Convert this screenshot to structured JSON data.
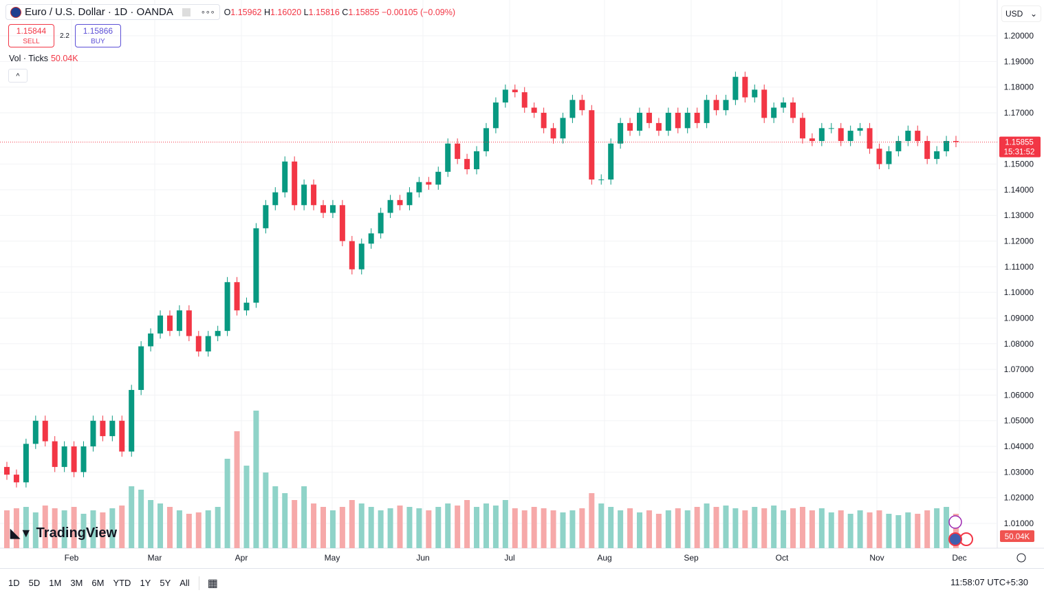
{
  "header": {
    "symbol": "Euro / U.S. Dollar · 1D · OANDA",
    "open_label": "O",
    "open": "1.15962",
    "high_label": "H",
    "high": "1.16020",
    "low_label": "L",
    "low": "1.15816",
    "close_label": "C",
    "close": "1.15855",
    "change": "−0.00105 (−0.09%)",
    "more": "∘∘∘"
  },
  "trade": {
    "sell_price": "1.15844",
    "sell_label": "SELL",
    "spread": "2.2",
    "buy_price": "1.15866",
    "buy_label": "BUY"
  },
  "volume_legend": {
    "label": "Vol · Ticks",
    "value": "50.04K"
  },
  "collapse": "^",
  "currency": "USD",
  "logo": "TradingView",
  "price_label": {
    "price": "1.15855",
    "countdown": "15:31:52"
  },
  "volume_label": "50.04K",
  "timeframes": [
    "1D",
    "5D",
    "1M",
    "3M",
    "6M",
    "YTD",
    "1Y",
    "5Y",
    "All"
  ],
  "clock": "11:58:07 UTC+5:30",
  "colors": {
    "up": "#089981",
    "down": "#f23645",
    "up_vol": "#8fd3c8",
    "down_vol": "#f6a9a9"
  },
  "chart_data": {
    "type": "candlestick",
    "first_open": 1.032,
    "closes": [
      1.029,
      1.026,
      1.041,
      1.05,
      1.042,
      1.032,
      1.04,
      1.03,
      1.04,
      1.05,
      1.044,
      1.05,
      1.038,
      1.062,
      1.079,
      1.084,
      1.091,
      1.085,
      1.093,
      1.083,
      1.077,
      1.083,
      1.085,
      1.104,
      1.093,
      1.096,
      1.125,
      1.134,
      1.139,
      1.151,
      1.134,
      1.142,
      1.134,
      1.131,
      1.134,
      1.12,
      1.109,
      1.119,
      1.123,
      1.131,
      1.136,
      1.134,
      1.139,
      1.143,
      1.142,
      1.147,
      1.158,
      1.152,
      1.148,
      1.155,
      1.164,
      1.174,
      1.179,
      1.178,
      1.172,
      1.17,
      1.164,
      1.16,
      1.168,
      1.175,
      1.171,
      1.144,
      1.144,
      1.158,
      1.166,
      1.163,
      1.17,
      1.166,
      1.163,
      1.17,
      1.164,
      1.17,
      1.166,
      1.175,
      1.171,
      1.175,
      1.184,
      1.176,
      1.179,
      1.168,
      1.172,
      1.174,
      1.168,
      1.16,
      1.159,
      1.164,
      1.164,
      1.159,
      1.163,
      1.164,
      1.156,
      1.15,
      1.155,
      1.159,
      1.163,
      1.159,
      1.152,
      1.155,
      1.159,
      1.1586
    ],
    "volumes_k": [
      55,
      58,
      60,
      52,
      62,
      58,
      55,
      60,
      50,
      55,
      52,
      58,
      62,
      90,
      85,
      70,
      65,
      60,
      55,
      50,
      52,
      55,
      60,
      130,
      170,
      120,
      200,
      110,
      90,
      80,
      70,
      90,
      65,
      60,
      55,
      60,
      70,
      65,
      60,
      55,
      58,
      62,
      60,
      58,
      55,
      60,
      65,
      62,
      70,
      60,
      65,
      62,
      70,
      58,
      55,
      60,
      58,
      55,
      52,
      55,
      58,
      80,
      65,
      60,
      55,
      58,
      52,
      55,
      50,
      55,
      58,
      55,
      60,
      65,
      60,
      62,
      58,
      55,
      60,
      58,
      62,
      55,
      58,
      60,
      55,
      58,
      52,
      55,
      50,
      55,
      52,
      55,
      50,
      48,
      52,
      50,
      55,
      58,
      60,
      50
    ],
    "y_ticks": [
      "1.20000",
      "1.19000",
      "1.18000",
      "1.17000",
      "1.15000",
      "1.14000",
      "1.13000",
      "1.12000",
      "1.11000",
      "1.10000",
      "1.09000",
      "1.08000",
      "1.07000",
      "1.06000",
      "1.05000",
      "1.04000",
      "1.03000",
      "1.02000",
      "1.01000"
    ],
    "ylim": [
      1.01,
      1.2
    ],
    "x_ticks": [
      "Feb",
      "Mar",
      "Apr",
      "May",
      "Jun",
      "Jul",
      "Aug",
      "Sep",
      "Oct",
      "Nov",
      "Dec"
    ],
    "grid": true
  }
}
